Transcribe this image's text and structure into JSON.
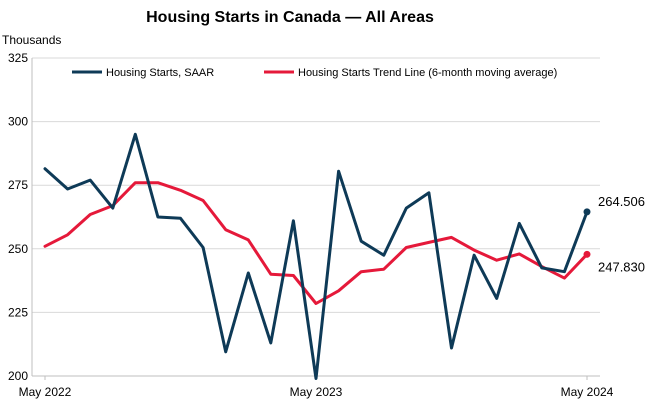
{
  "colors": {
    "series_primary": "#0e3a57",
    "series_trend": "#e5193a",
    "grid": "#d9d9d9",
    "axis": "#bfbfbf"
  },
  "chart_data": {
    "type": "line",
    "title": "Housing Starts in Canada — All Areas",
    "ylabel": "Thousands",
    "xlabel": "",
    "x_tick_labels": [
      "May 2022",
      "May 2023",
      "May 2024"
    ],
    "y_ticks": [
      200,
      225,
      250,
      275,
      300,
      325
    ],
    "ylim": [
      200,
      325
    ],
    "grid": true,
    "legend_position": "top",
    "x": [
      "May 2022",
      "Jun 2022",
      "Jul 2022",
      "Aug 2022",
      "Sep 2022",
      "Oct 2022",
      "Nov 2022",
      "Dec 2022",
      "Jan 2023",
      "Feb 2023",
      "Mar 2023",
      "Apr 2023",
      "May 2023",
      "Jun 2023",
      "Jul 2023",
      "Aug 2023",
      "Sep 2023",
      "Oct 2023",
      "Nov 2023",
      "Dec 2023",
      "Jan 2024",
      "Feb 2024",
      "Mar 2024",
      "Apr 2024",
      "May 2024"
    ],
    "series": [
      {
        "name": "Housing Starts, SAAR",
        "color": "#0e3a57",
        "values": [
          281.5,
          273.5,
          277.0,
          266.0,
          295.0,
          262.5,
          262.0,
          250.5,
          209.5,
          240.5,
          213.0,
          261.0,
          199.0,
          280.5,
          253.0,
          247.5,
          266.0,
          272.0,
          211.0,
          247.5,
          230.5,
          260.0,
          242.5,
          241.0,
          264.506
        ],
        "end_label": "264.506"
      },
      {
        "name": "Housing Starts Trend Line (6-month moving average)",
        "color": "#e5193a",
        "values": [
          251.0,
          255.5,
          263.5,
          267.0,
          276.0,
          276.0,
          273.0,
          269.0,
          257.5,
          253.5,
          240.0,
          239.5,
          228.5,
          233.5,
          241.0,
          242.0,
          250.5,
          252.5,
          254.5,
          249.5,
          245.5,
          248.0,
          243.0,
          238.5,
          247.83
        ],
        "end_label": "247.830"
      }
    ]
  }
}
